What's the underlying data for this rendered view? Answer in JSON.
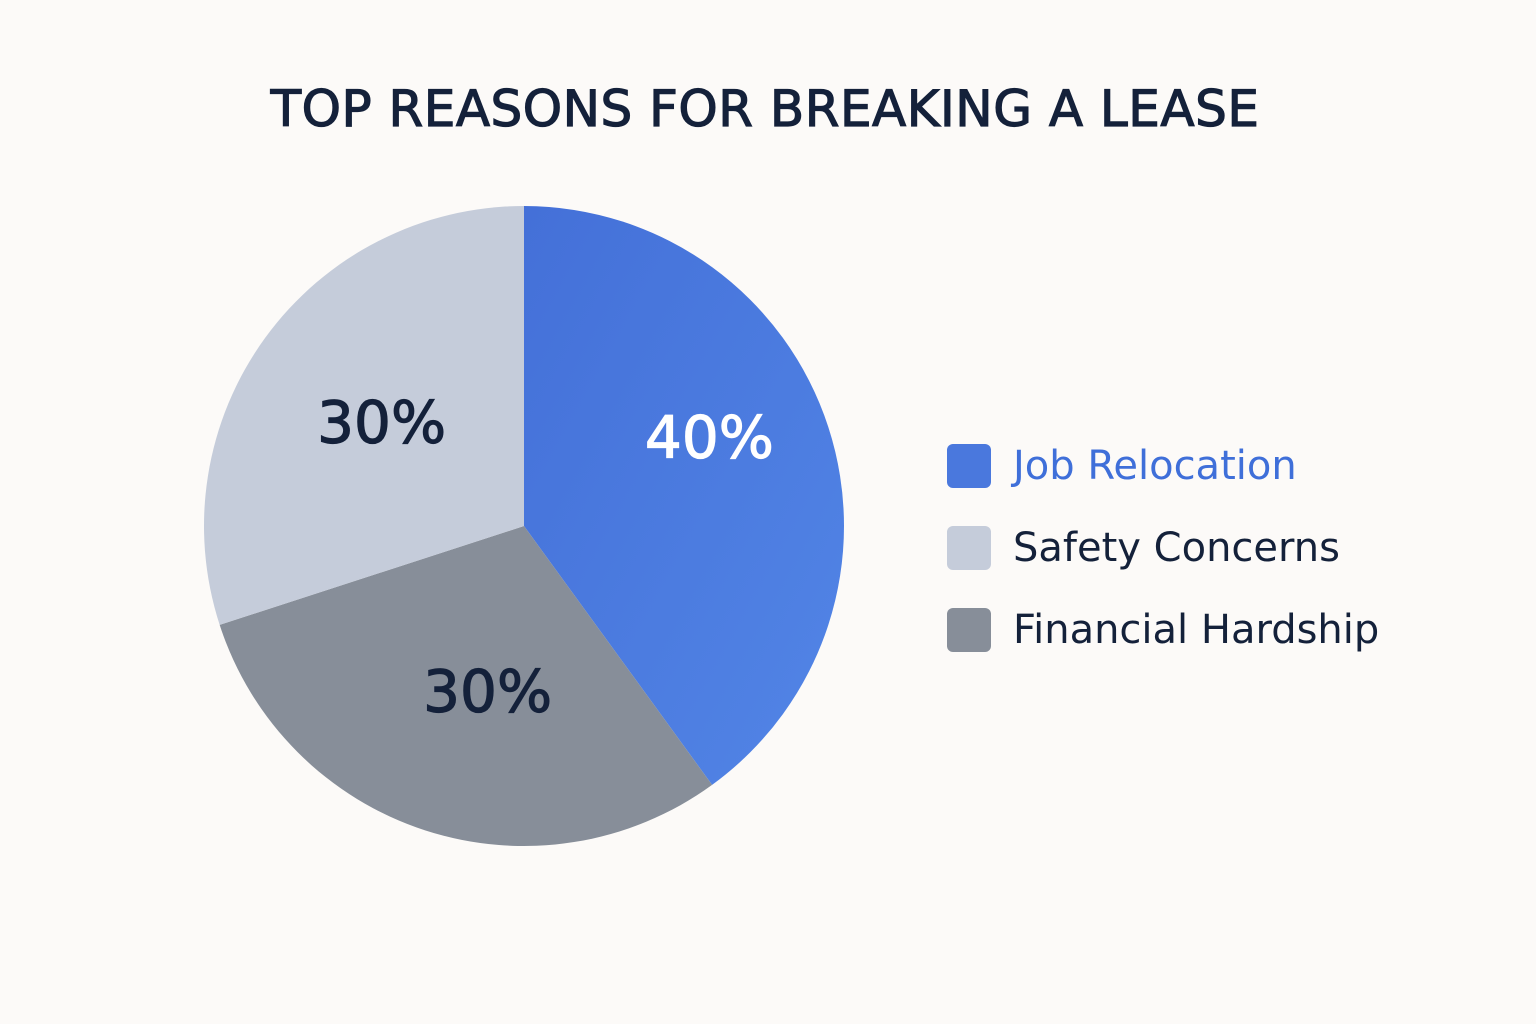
{
  "chart_data": {
    "type": "pie",
    "title": "TOP REASONS FOR BREAKING A LEASE",
    "categories": [
      "Job Relocation",
      "Financial Hardship",
      "Safety Concerns"
    ],
    "values": [
      40,
      30,
      30
    ],
    "labels": [
      "40%",
      "30%",
      "30%"
    ],
    "colors": [
      "#4a78dd",
      "#878e99",
      "#c5ccda"
    ],
    "label_colors": [
      "#ffffff",
      "#14213a",
      "#14213a"
    ],
    "legend_placement": "right",
    "legend": [
      {
        "label": "Job Relocation",
        "color": "#4a78dd",
        "text_color": "#3f6fd9"
      },
      {
        "label": "Safety Concerns",
        "color": "#c5ccda",
        "text_color": "#14213a"
      },
      {
        "label": "Financial Hardship",
        "color": "#878e99",
        "text_color": "#14213a"
      }
    ]
  }
}
